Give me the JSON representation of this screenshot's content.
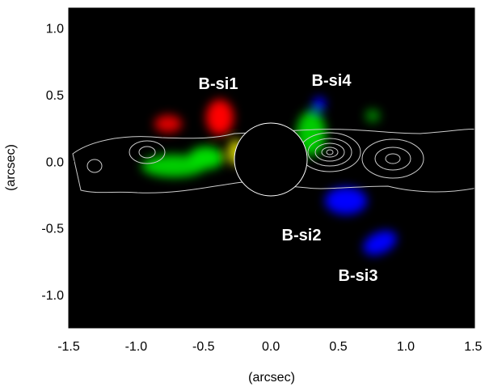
{
  "chart_data": {
    "type": "image",
    "xlabel": "(arcsec)",
    "ylabel": "(arcsec)",
    "xlim": [
      -1.5,
      1.51
    ],
    "ylim": [
      -1.25,
      1.15
    ],
    "xticks": [
      -1.5,
      {
        "value": -1,
        "label": "-1.0"
      },
      -0.5,
      {
        "value": 0,
        "label": "0.0"
      },
      0.5,
      {
        "value": 1,
        "label": "1.0"
      },
      1.5
    ],
    "yticks": [
      {
        "value": 1,
        "label": "1.0"
      },
      0.5,
      {
        "value": 0,
        "label": "0.0"
      },
      -0.5,
      {
        "value": -1,
        "label": "-1.0"
      }
    ],
    "annotations": [
      "B-si1",
      "B-si4",
      "B-si2",
      "B-si3"
    ]
  }
}
